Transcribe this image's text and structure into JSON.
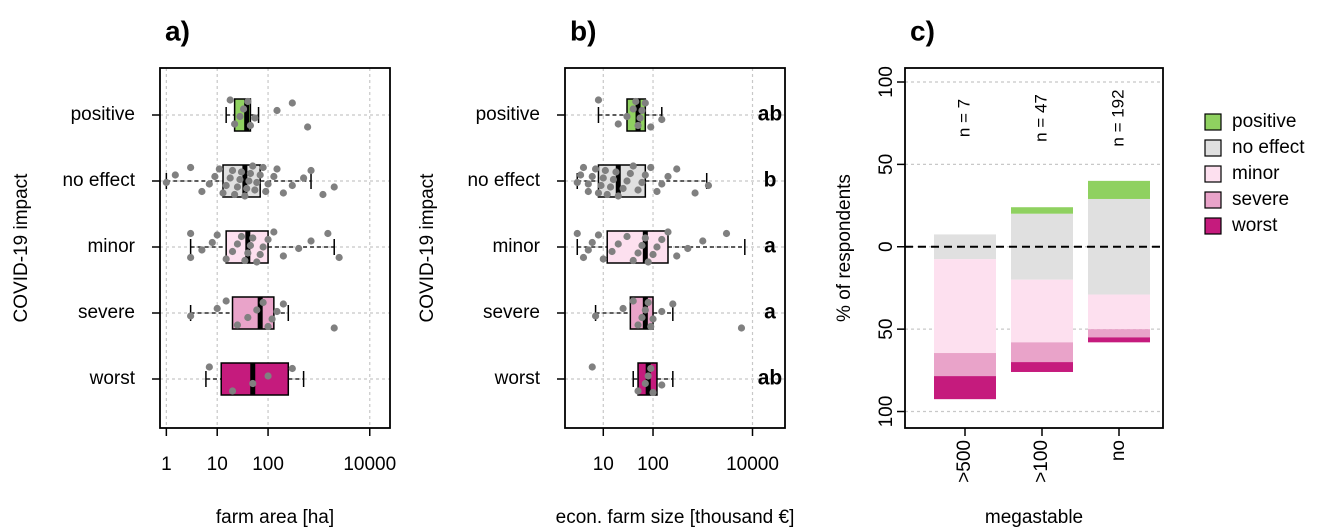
{
  "chart_data": [
    {
      "type": "boxplot",
      "title": "a)",
      "x_label": "farm area [ha]",
      "y_label": "COVID-19 impact",
      "log_x": true,
      "grid": true,
      "xlim": [
        0.75,
        25000
      ],
      "xticks": [
        1,
        10,
        100,
        10000
      ],
      "categories": [
        "positive",
        "no effect",
        "minor",
        "severe",
        "worst"
      ],
      "colors": [
        "#8fd160",
        "#e0e0e0",
        "#fde0ef",
        "#e9a3c9",
        "#c51b7d"
      ],
      "boxes": [
        {
          "min": 15,
          "q1": 22,
          "median": 38,
          "q3": 45,
          "max": 65
        },
        {
          "min": 1,
          "q1": 13,
          "median": 35,
          "q3": 70,
          "max": 700
        },
        {
          "min": 3,
          "q1": 15,
          "median": 40,
          "q3": 100,
          "max": 2000
        },
        {
          "min": 3,
          "q1": 20,
          "median": 70,
          "q3": 130,
          "max": 250
        },
        {
          "min": 6,
          "q1": 12,
          "median": 50,
          "q3": 250,
          "max": 500
        }
      ],
      "points": [
        [
          18,
          22,
          28,
          33,
          40,
          45,
          55,
          150,
          300,
          600
        ],
        [
          1,
          1.5,
          3,
          5,
          7,
          9,
          11,
          13,
          15,
          18,
          20,
          22,
          25,
          28,
          30,
          35,
          38,
          42,
          45,
          50,
          55,
          60,
          70,
          80,
          90,
          100,
          130,
          150,
          200,
          300,
          500,
          700,
          1200,
          2000
        ],
        [
          3,
          3,
          5,
          8,
          10,
          15,
          20,
          25,
          30,
          35,
          40,
          45,
          50,
          60,
          70,
          80,
          100,
          130,
          200,
          400,
          700,
          1500,
          2500
        ],
        [
          3,
          10,
          15,
          25,
          40,
          60,
          80,
          100,
          120,
          150,
          200,
          2000
        ],
        [
          7,
          20,
          50,
          100,
          300
        ]
      ]
    },
    {
      "type": "boxplot",
      "title": "b)",
      "x_label": "econ. farm size [thousand €]",
      "y_label": "COVID-19 impact",
      "log_x": true,
      "grid": true,
      "xlim": [
        1.7,
        45000
      ],
      "xticks": [
        10,
        100,
        10000
      ],
      "categories": [
        "positive",
        "no effect",
        "minor",
        "severe",
        "worst"
      ],
      "annotations": [
        "ab",
        "b",
        "a",
        "a",
        "ab"
      ],
      "colors": [
        "#8fd160",
        "#e0e0e0",
        "#fde0ef",
        "#e9a3c9",
        "#c51b7d"
      ],
      "boxes": [
        {
          "min": 8,
          "q1": 30,
          "median": 50,
          "q3": 70,
          "max": 150
        },
        {
          "min": 3,
          "q1": 8,
          "median": 20,
          "q3": 70,
          "max": 1200
        },
        {
          "min": 3,
          "q1": 12,
          "median": 70,
          "q3": 200,
          "max": 7000
        },
        {
          "min": 7,
          "q1": 35,
          "median": 70,
          "q3": 100,
          "max": 250
        },
        {
          "min": 40,
          "q1": 50,
          "median": 80,
          "q3": 120,
          "max": 250
        }
      ],
      "points": [
        [
          8,
          20,
          30,
          40,
          45,
          50,
          55,
          60,
          70,
          90,
          150
        ],
        [
          3,
          3.5,
          4,
          5,
          5,
          6,
          7,
          8,
          9,
          10,
          11,
          12,
          14,
          16,
          18,
          20,
          25,
          30,
          35,
          40,
          50,
          60,
          70,
          90,
          120,
          150,
          200,
          300,
          700,
          1300
        ],
        [
          3,
          4,
          5,
          6,
          8,
          10,
          15,
          20,
          30,
          40,
          50,
          60,
          70,
          80,
          100,
          120,
          150,
          200,
          300,
          500,
          1000,
          3000
        ],
        [
          7,
          25,
          40,
          50,
          60,
          70,
          80,
          90,
          100,
          150,
          250,
          6000
        ],
        [
          6,
          50,
          70,
          80,
          90,
          100,
          150
        ]
      ]
    },
    {
      "type": "diverging_bar",
      "title": "c)",
      "x_label": "megastable",
      "y_label": "% of respondents",
      "grid": true,
      "legend": "right",
      "ylim": [
        -110,
        108.5
      ],
      "yticks": [
        {
          "value": -100,
          "label": "100"
        },
        {
          "value": -50,
          "label": "50"
        },
        0,
        50,
        100
      ],
      "categories": [
        ">500",
        ">100",
        "no"
      ],
      "annotations": [
        "n = 7",
        "n = 47",
        "n = 192"
      ],
      "series": [
        {
          "name": "positive",
          "color": "#8fd160",
          "values": [
            0,
            4,
            11
          ]
        },
        {
          "name": "no effect",
          "color": "#e0e0e0",
          "values": [
            15,
            40,
            58
          ]
        },
        {
          "name": "minor",
          "color": "#fde0ef",
          "values": [
            57,
            38,
            21
          ]
        },
        {
          "name": "severe",
          "color": "#e9a3c9",
          "values": [
            14,
            12,
            5
          ]
        },
        {
          "name": "worst",
          "color": "#c51b7d",
          "values": [
            14,
            6,
            3
          ]
        }
      ]
    }
  ]
}
